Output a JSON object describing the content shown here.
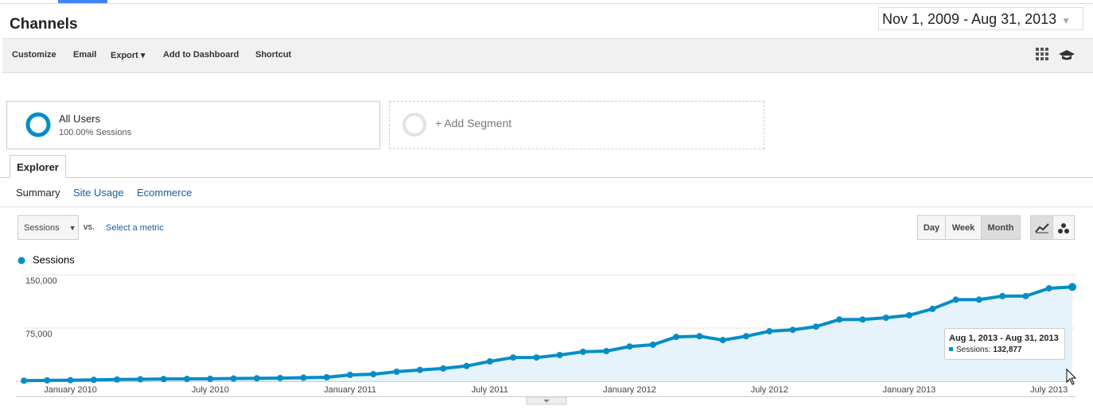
{
  "header": {
    "title": "Channels",
    "date_range": "Nov 1, 2009 - Aug 31, 2013"
  },
  "toolbar": [
    "Customize",
    "Email",
    "Export",
    "Add to Dashboard",
    "Shortcut"
  ],
  "segments": {
    "active": {
      "name": "All Users",
      "detail": "100.00% Sessions"
    },
    "add": "+ Add Segment"
  },
  "tab": "Explorer",
  "subtabs": [
    "Summary",
    "Site Usage",
    "Ecommerce"
  ],
  "metric": {
    "selected": "Sessions",
    "vs": "vs.",
    "select": "Select a metric"
  },
  "granularity": [
    "Day",
    "Week",
    "Month"
  ],
  "chart_data": {
    "type": "line",
    "categories": [
      null,
      null,
      "January 2010",
      null,
      null,
      null,
      null,
      null,
      "July 2010",
      null,
      null,
      null,
      null,
      null,
      "January 2011",
      null,
      null,
      null,
      null,
      null,
      "July 2011",
      null,
      null,
      null,
      null,
      null,
      "January 2012",
      null,
      null,
      null,
      null,
      null,
      "July 2012",
      null,
      null,
      null,
      null,
      null,
      "January 2013",
      null,
      null,
      null,
      null,
      null,
      "July 2013",
      null
    ],
    "series": [
      {
        "name": "Sessions",
        "color": "#058dc7",
        "values": [
          800,
          1200,
          1500,
          2000,
          2500,
          2800,
          3200,
          3300,
          3500,
          3900,
          4200,
          4500,
          5000,
          5600,
          9000,
          10000,
          13500,
          16000,
          18000,
          21500,
          28000,
          33500,
          33500,
          37000,
          41500,
          42500,
          49000,
          51500,
          62500,
          63500,
          58000,
          63500,
          70500,
          72500,
          77000,
          87000,
          87000,
          89500,
          93000,
          102000,
          115000,
          115000,
          120000,
          120000,
          131000,
          132877
        ],
        "value_labels": [
          null,
          null,
          null,
          null,
          null,
          null,
          null,
          null,
          null,
          null,
          null,
          null,
          null,
          null,
          null,
          null,
          null,
          null,
          null,
          null,
          null,
          null,
          null,
          null,
          null,
          null,
          null,
          null,
          null,
          null,
          null,
          null,
          null,
          null,
          null,
          null,
          null,
          null,
          null,
          null,
          null,
          null,
          null,
          null,
          null,
          "132,877"
        ]
      }
    ],
    "ylim": [
      0,
      150000
    ],
    "yticks": [
      {
        "value": 75000,
        "label": "75,000"
      },
      {
        "value": 150000,
        "label": "150,000"
      }
    ],
    "grid": true,
    "tooltip": {
      "title": "Aug 1, 2013 - Aug 31, 2013",
      "series_label": "Sessions:",
      "index": 45
    }
  }
}
